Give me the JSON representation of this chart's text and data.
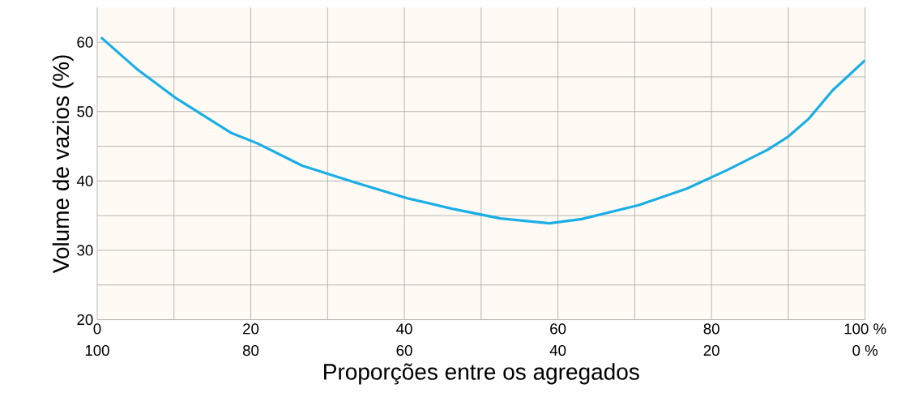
{
  "chart_data": {
    "type": "line",
    "xlabel": "Proporções entre os agregados",
    "ylabel": "Volume de vazios (%)",
    "x": [
      0.5,
      5.1,
      10.3,
      17.5,
      20.9,
      26.7,
      33.5,
      40.4,
      46.2,
      52.5,
      58.9,
      63.1,
      70.5,
      76.8,
      82.1,
      87.3,
      90.0,
      92.6,
      95.8,
      100
    ],
    "series": [
      {
        "color": "#1aaee6",
        "values": [
          60.7,
          56.2,
          51.9,
          46.9,
          45.4,
          42.2,
          39.8,
          37.5,
          36.0,
          34.6,
          33.9,
          34.5,
          36.5,
          38.9,
          41.6,
          44.5,
          46.4,
          48.9,
          53.1,
          57.4
        ]
      }
    ],
    "xlim": [
      0,
      100
    ],
    "ylim": [
      20,
      65
    ],
    "xticks": [
      0,
      {
        "value": 10,
        "label": null
      },
      20,
      {
        "value": 30,
        "label": null
      },
      40,
      {
        "value": 50,
        "label": null
      },
      60,
      {
        "value": 70,
        "label": null
      },
      80,
      {
        "value": 90,
        "label": null
      },
      {
        "value": 100,
        "label": "100 %"
      }
    ],
    "x2lim": [
      100,
      0
    ],
    "x2ticks": [
      100,
      80,
      60,
      40,
      20,
      {
        "value": 0,
        "label": "0 %"
      }
    ],
    "yticks": [
      20,
      {
        "value": 25,
        "label": null
      },
      30,
      {
        "value": 35,
        "label": null
      },
      40,
      {
        "value": 45,
        "label": null
      },
      50,
      {
        "value": 55,
        "label": null
      },
      60
    ],
    "grid": true,
    "marker": "none",
    "line_style": "solid"
  }
}
